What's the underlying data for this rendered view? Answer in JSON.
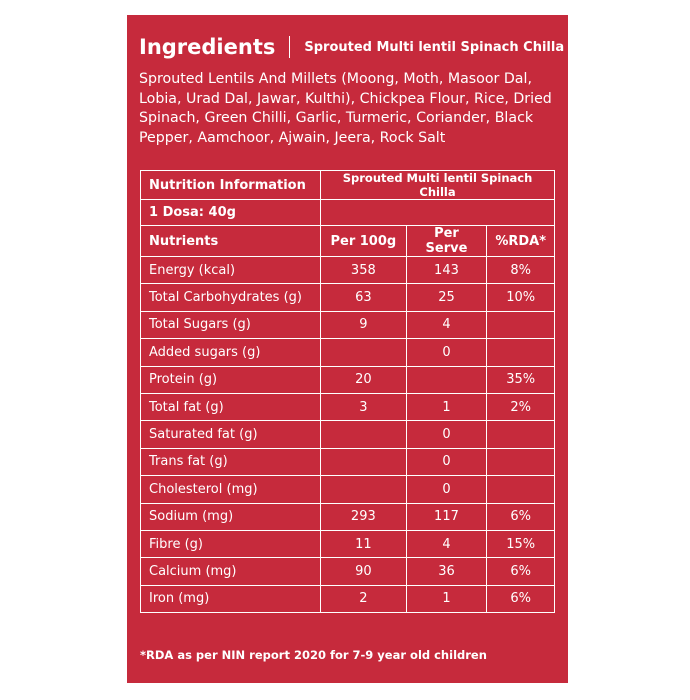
{
  "header": {
    "title": "Ingredients",
    "subtitle": "Sprouted Multi lentil Spinach Chilla"
  },
  "ingredients": "Sprouted Lentils And Millets (Moong, Moth, Masoor Dal, Lobia, Urad Dal, Jawar, Kulthi), Chickpea Flour, Rice, Dried Spinach, Green Chilli, Garlic, Turmeric, Coriander, Black Pepper, Aamchoor, Ajwain, Jeera, Rock Salt",
  "table": {
    "heading": [
      "Nutrition Information",
      "Sprouted Multi lentil Spinach Chilla"
    ],
    "serving": "1 Dosa: 40g",
    "columns": [
      "Nutrients",
      "Per 100g",
      "Per Serve",
      "%RDA*"
    ],
    "rows": [
      [
        "Energy (kcal)",
        "358",
        "143",
        "8%"
      ],
      [
        "Total Carbohydrates (g)",
        "63",
        "25",
        "10%"
      ],
      [
        "Total Sugars (g)",
        "9",
        "4",
        null
      ],
      [
        "Added sugars (g)",
        null,
        "0",
        null
      ],
      [
        "Protein (g)",
        "20",
        null,
        "35%"
      ],
      [
        "Total fat (g)",
        "3",
        "1",
        "2%"
      ],
      [
        "Saturated fat (g)",
        null,
        "0",
        null
      ],
      [
        "Trans fat (g)",
        null,
        "0",
        null
      ],
      [
        "Cholesterol (mg)",
        null,
        "0",
        null
      ],
      [
        "Sodium (mg)",
        "293",
        "117",
        "6%"
      ],
      [
        "Fibre (g)",
        "11",
        "4",
        "15%"
      ],
      [
        "Calcium (mg)",
        "90",
        "36",
        "6%"
      ],
      [
        "Iron (mg)",
        "2",
        "1",
        "6%"
      ]
    ]
  },
  "footnote": "*RDA as per NIN report 2020 for 7-9 year old children"
}
